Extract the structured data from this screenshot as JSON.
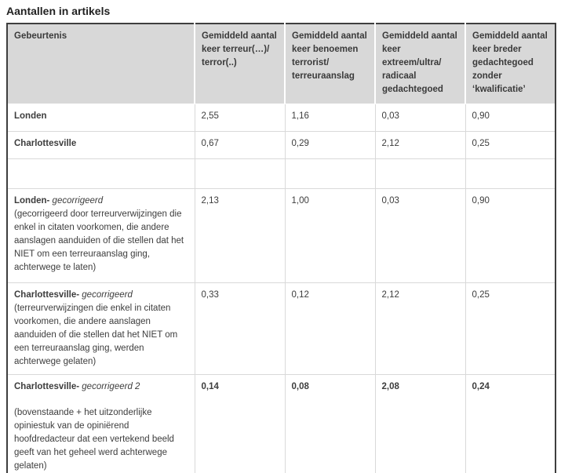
{
  "title": "Aantallen in artikels",
  "colors": {
    "header_bg": "#d8d8d8",
    "outer_border": "#3e3e3e",
    "grid_border": "#d9d9d9",
    "text": "#3d3d3d",
    "partial_row_bg": "#dfdfdf"
  },
  "table": {
    "headers": [
      "Gebeurtenis",
      "Gemiddeld aantal keer terreur(…)/ terror(..)",
      "Gemiddeld aantal keer benoemen terrorist/ terreuraanslag",
      "Gemiddeld aantal keer extreem/ultra/ radicaal gedachtegoed",
      "Gemiddeld aantal keer breder gedachtegoed zonder ‘kwalificatie’"
    ],
    "rows": [
      {
        "name": "Londen",
        "suffix": "",
        "description": "",
        "values": [
          "2,55",
          "1,16",
          "0,03",
          "0,90"
        ]
      },
      {
        "name": "Charlottesville",
        "suffix": "",
        "description": "",
        "values": [
          "0,67",
          "0,29",
          "2,12",
          "0,25"
        ]
      },
      {
        "name": "",
        "suffix": "",
        "description": "",
        "values": [
          "",
          "",
          "",
          ""
        ]
      },
      {
        "name": "Londen-",
        "suffix": " gecorrigeerd",
        "description": "(gecorrigeerd door terreurverwijzingen die enkel in citaten voorkomen, die andere aanslagen aanduiden of die stellen dat het NIET om een terreuraanslag ging, achterwege te laten)",
        "values": [
          "2,13",
          "1,00",
          "0,03",
          "0,90"
        ]
      },
      {
        "name": "Charlottesville-",
        "suffix": " gecorrigeerd",
        "description": "(terreurverwijzingen die enkel in citaten voorkomen, die andere aanslagen aanduiden of die stellen dat het NIET om een terreuraanslag ging, werden achterwege gelaten)",
        "values": [
          "0,33",
          "0,12",
          "2,12",
          "0,25"
        ]
      },
      {
        "name": "Charlottesville-",
        "suffix": " gecorrigeerd 2",
        "description": "(bovenstaande + het uitzonderlijke opiniestuk van de opiniërend hoofdredacteur dat een vertekend beeld geeft van het geheel werd achterwege gelaten)",
        "values": [
          "0,14",
          "0,08",
          "2,08",
          "0,24"
        ]
      }
    ]
  }
}
